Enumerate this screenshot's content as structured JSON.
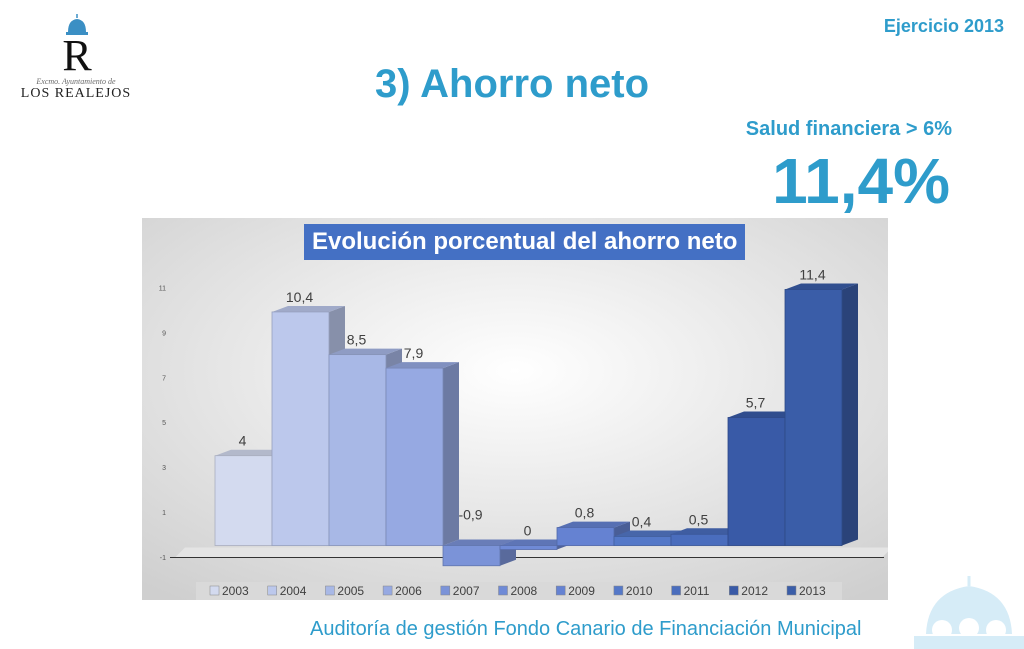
{
  "header": {
    "exercise": "Ejercicio 2013",
    "title": "3) Ahorro neto",
    "health_label": "Salud financiera > 6%",
    "big_value": "11,4%"
  },
  "logo": {
    "letter": "R",
    "subtitle": "Excmo. Ayuntamiento de",
    "name": "LOS REALEJOS"
  },
  "footer": {
    "text": "Auditoría de gestión Fondo Canario de Financiación Municipal"
  },
  "colors": {
    "accent": "#2e9ccb",
    "chart_title_bg": "#4470c4"
  },
  "chart_data": {
    "type": "bar",
    "title": "Evolución porcentual del ahorro neto",
    "categories": [
      "2003",
      "2004",
      "2005",
      "2006",
      "2007",
      "2008",
      "2009",
      "2010",
      "2011",
      "2012",
      "2013"
    ],
    "values": [
      4,
      10.4,
      8.5,
      7.9,
      -0.9,
      0,
      0.8,
      0.4,
      0.5,
      5.7,
      11.4
    ],
    "data_labels": [
      "4",
      "10,4",
      "8,5",
      "7,9",
      "-0,9",
      "0",
      "0,8",
      "0,4",
      "0,5",
      "5,7",
      "11,4"
    ],
    "y_ticks": [
      "-1",
      "1",
      "3",
      "5",
      "7",
      "9",
      "11"
    ],
    "ylim": [
      -1,
      12
    ],
    "legend_position": "bottom",
    "colors": [
      "#d3daef",
      "#bcc8ec",
      "#a8b8e6",
      "#96a9e2",
      "#7b93d8",
      "#6f8ad6",
      "#6582d2",
      "#5478c8",
      "#4a6dbd",
      "#395aa7",
      "#3a5da8"
    ],
    "grid": false
  }
}
